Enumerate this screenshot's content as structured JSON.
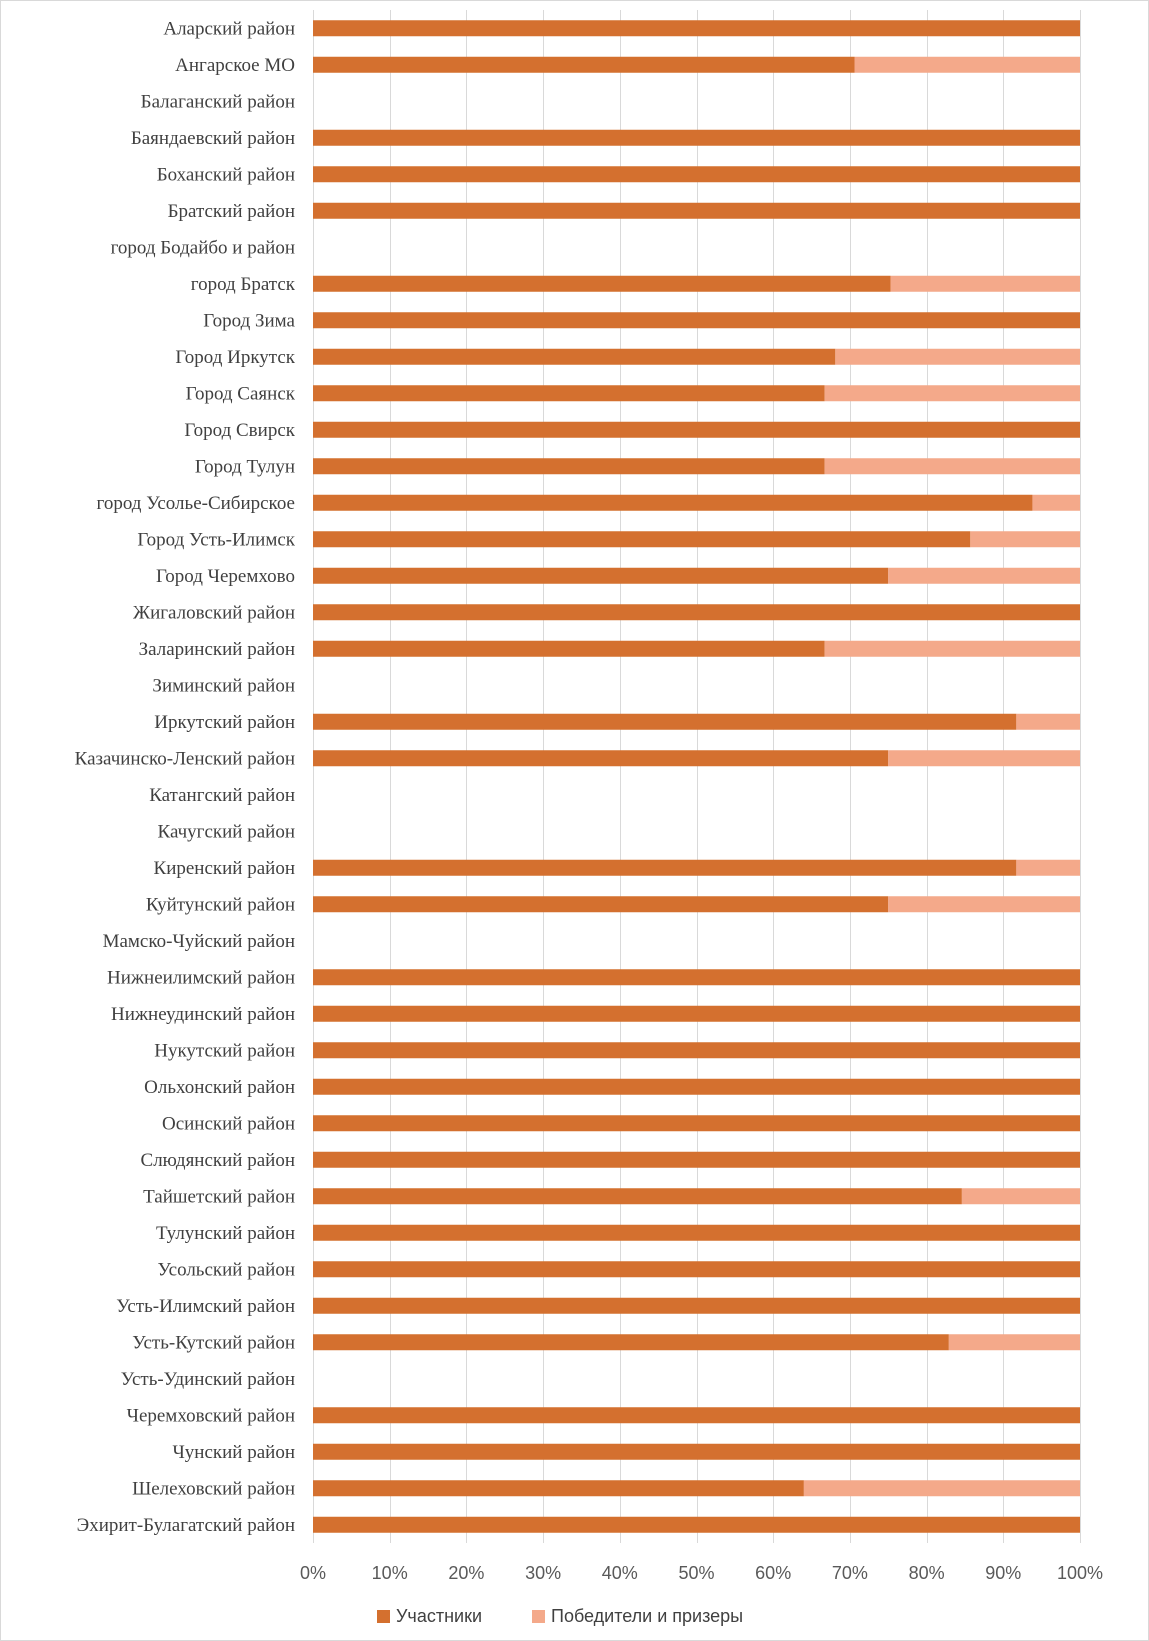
{
  "chart_data": {
    "type": "bar",
    "orientation": "horizontal",
    "stacked": "percent",
    "categories": [
      "Аларский район",
      "Ангарское МО",
      "Балаганский район",
      "Баяндаевский район",
      "Боханский район",
      "Братский район",
      "город Бодайбо и район",
      "город Братск",
      "Город Зима",
      "Город Иркутск",
      "Город Саянск",
      "Город Свирск",
      "Город Тулун",
      "город Усолье-Сибирское",
      "Город Усть-Илимск",
      "Город Черемхово",
      "Жигаловский район",
      "Заларинский район",
      "Зиминский район ",
      "Иркутский район",
      "Казачинско-Ленский район",
      "Катангский район",
      "Качугский район",
      "Киренский район",
      "Куйтунский район",
      "Мамско-Чуйский район",
      "Нижнеилимский район",
      "Нижнеудинский район",
      "Нукутский район",
      "Ольхонский район",
      "Осинский район",
      "Слюдянский район",
      "Тайшетский район",
      "Тулунский район",
      "Усольский район",
      "Усть-Илимский район",
      "Усть-Кутский район",
      "Усть-Удинский район",
      "Черемховский район",
      "Чунский район",
      "Шелеховский район",
      "Эхирит-Булагатский район"
    ],
    "series": [
      {
        "name": "Участники",
        "color": "#d4702f",
        "values": [
          100,
          70.6,
          0,
          100,
          100,
          100,
          0,
          75.3,
          100,
          68.1,
          66.7,
          100,
          66.7,
          93.8,
          85.7,
          75,
          100,
          66.7,
          0,
          91.7,
          75,
          0,
          0,
          91.7,
          75,
          0,
          100,
          100,
          100,
          100,
          100,
          100,
          84.6,
          100,
          100,
          100,
          82.9,
          0,
          100,
          100,
          64,
          100
        ]
      },
      {
        "name": "Победители и призеры",
        "color": "#f4a98a",
        "values": [
          0,
          29.4,
          0,
          0,
          0,
          0,
          0,
          24.7,
          0,
          31.9,
          33.3,
          0,
          33.3,
          6.2,
          14.3,
          25,
          0,
          33.3,
          0,
          8.3,
          25,
          0,
          0,
          8.3,
          25,
          0,
          0,
          0,
          0,
          0,
          0,
          0,
          15.4,
          0,
          0,
          0,
          17.1,
          0,
          0,
          0,
          36,
          0
        ]
      }
    ],
    "xlim": [
      0,
      100
    ],
    "x_ticks": [
      "0%",
      "10%",
      "20%",
      "30%",
      "40%",
      "50%",
      "60%",
      "70%",
      "80%",
      "90%",
      "100%"
    ],
    "x_grid": true,
    "legend_position": "bottom",
    "title": "",
    "xlabel": "",
    "ylabel": ""
  }
}
